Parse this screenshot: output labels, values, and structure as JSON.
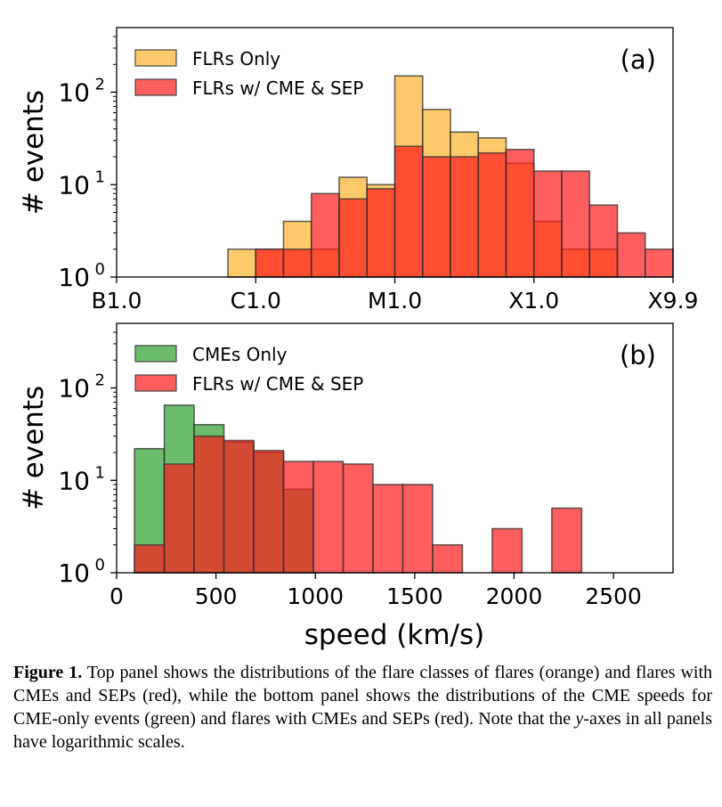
{
  "chart_data": [
    {
      "type": "bar",
      "panel_label": "(a)",
      "xlabel": "",
      "ylabel": "# events",
      "yscale": "log",
      "ylim": [
        1,
        500
      ],
      "y_ticks": [
        {
          "value": 1,
          "base": "10",
          "exp": "0"
        },
        {
          "value": 10,
          "base": "10",
          "exp": "1"
        },
        {
          "value": 100,
          "base": "10",
          "exp": "2"
        }
      ],
      "xlim": [
        0,
        20
      ],
      "x_ticks": [
        {
          "value": 0,
          "label": "B1.0"
        },
        {
          "value": 5,
          "label": "C1.0"
        },
        {
          "value": 10,
          "label": "M1.0"
        },
        {
          "value": 15,
          "label": "X1.0"
        },
        {
          "value": 20,
          "label": "X9.9"
        }
      ],
      "bin_edges": [
        0,
        1,
        2,
        3,
        4,
        5,
        6,
        7,
        8,
        9,
        10,
        11,
        12,
        13,
        14,
        15,
        16,
        17,
        18,
        19,
        20
      ],
      "series": [
        {
          "name": "FLRs Only",
          "color": "#fdb32c",
          "values": [
            1,
            1,
            1,
            1,
            2,
            2,
            4,
            2,
            12,
            10,
            150,
            65,
            37,
            32,
            17,
            4,
            2,
            2,
            0,
            0
          ]
        },
        {
          "name": "FLRs w/ CME & SEP",
          "color": "#ff1a1a",
          "values": [
            0,
            0,
            0,
            0,
            0,
            2,
            2,
            8,
            7,
            9,
            26,
            20,
            20,
            22,
            24,
            14,
            14,
            6,
            3,
            2
          ]
        }
      ],
      "legend": "top-left"
    },
    {
      "type": "bar",
      "panel_label": "(b)",
      "xlabel": "speed (km/s)",
      "ylabel": "# events",
      "yscale": "log",
      "ylim": [
        1,
        500
      ],
      "y_ticks": [
        {
          "value": 1,
          "base": "10",
          "exp": "0"
        },
        {
          "value": 10,
          "base": "10",
          "exp": "1"
        },
        {
          "value": 100,
          "base": "10",
          "exp": "2"
        }
      ],
      "xlim": [
        0,
        2800
      ],
      "x_ticks": [
        {
          "value": 0,
          "label": "0"
        },
        {
          "value": 500,
          "label": "500"
        },
        {
          "value": 1000,
          "label": "1000"
        },
        {
          "value": 1500,
          "label": "1500"
        },
        {
          "value": 2000,
          "label": "2000"
        },
        {
          "value": 2500,
          "label": "2500"
        }
      ],
      "bin_edges": [
        90,
        240,
        390,
        540,
        690,
        840,
        990,
        1140,
        1290,
        1440,
        1590,
        1740,
        1890,
        2040,
        2190,
        2340,
        2490,
        2640,
        2790
      ],
      "series": [
        {
          "name": "CMEs Only",
          "color": "#2ca02c",
          "values": [
            22,
            65,
            40,
            26,
            20,
            8,
            0,
            0,
            0,
            0,
            0,
            0,
            0,
            0,
            0,
            0,
            0,
            0
          ]
        },
        {
          "name": "FLRs w/ CME & SEP",
          "color": "#ff1a1a",
          "values": [
            2,
            15,
            30,
            27,
            21,
            16,
            16,
            15,
            9,
            9,
            2,
            0,
            3,
            0,
            5,
            0,
            0,
            0
          ]
        }
      ],
      "legend": "top-left"
    }
  ],
  "caption": {
    "label": "Figure 1.",
    "text_1": " Top panel shows the distributions of the flare classes of flares (orange) and flares with CMEs and SEPs (red), while the bottom panel shows the distributions of the CME speeds for CME-only events (green) and flares with CMEs and SEPs (red). Note that the ",
    "italic": "y",
    "text_2": "-axes in all panels have logarithmic scales."
  }
}
